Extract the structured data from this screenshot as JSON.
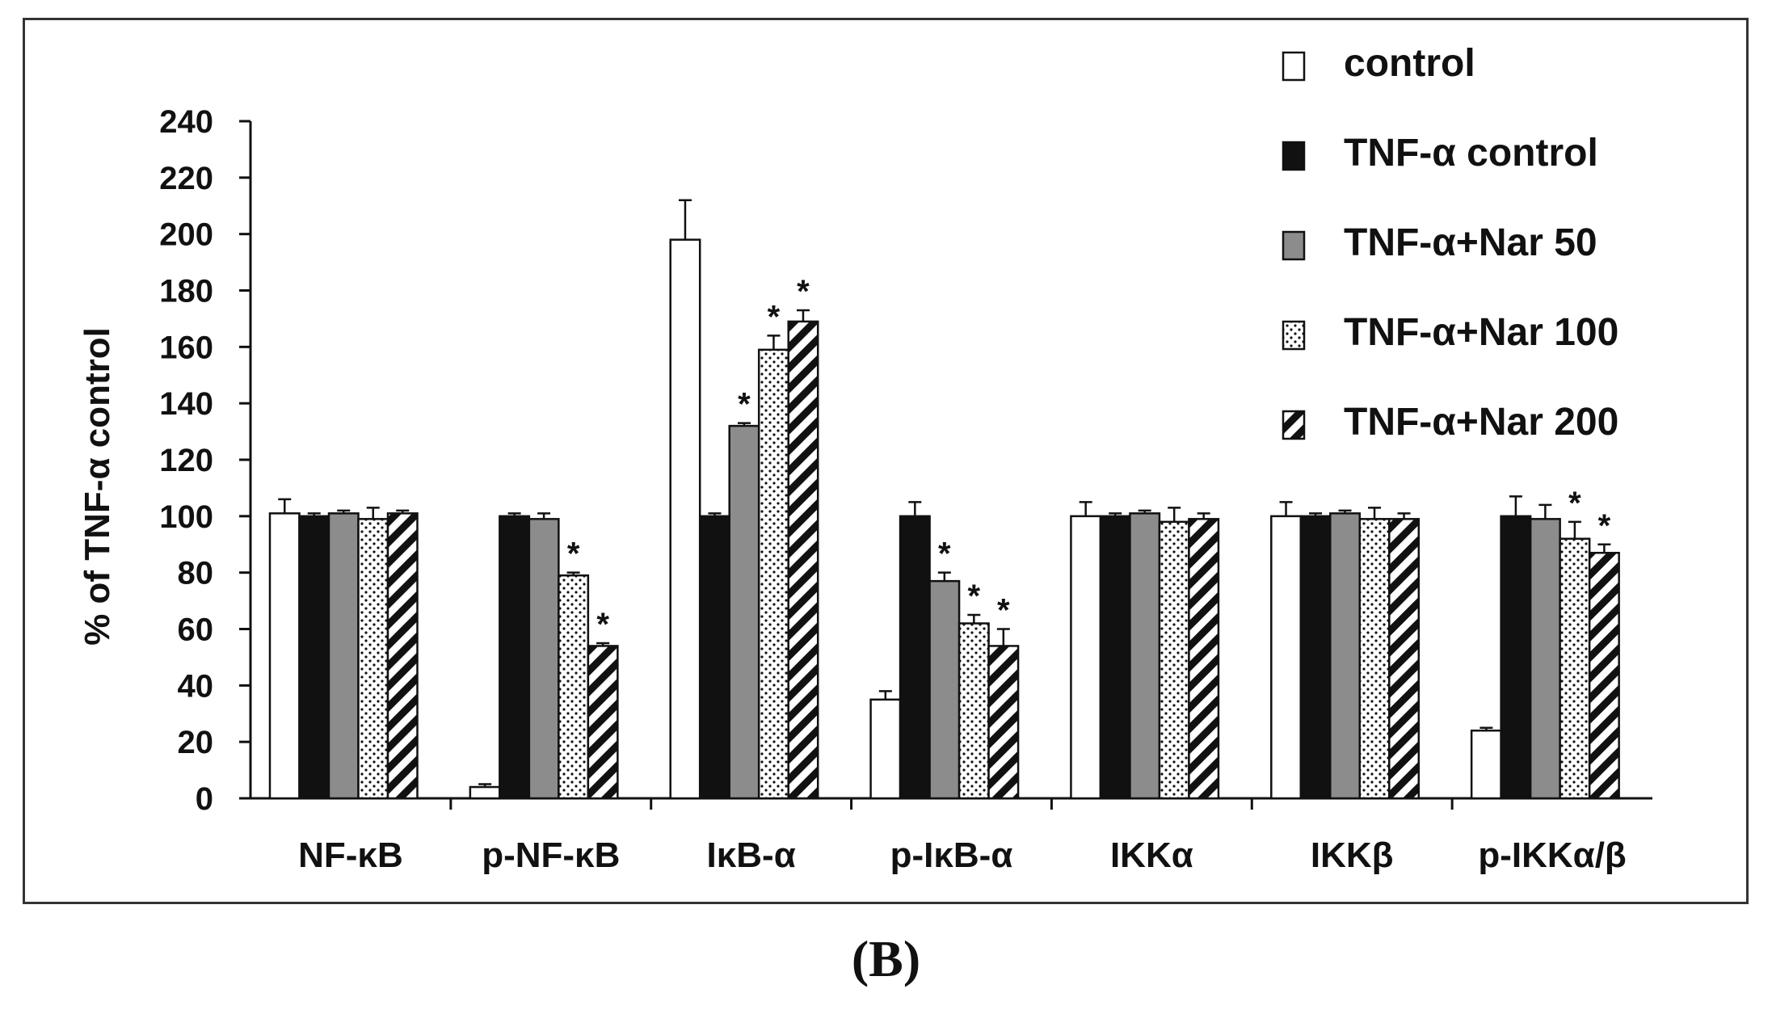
{
  "panel_label": "(B)",
  "chart_data": {
    "type": "bar",
    "title": "",
    "xlabel": "",
    "ylabel": "% of  TNF-α control",
    "ylim": [
      0,
      240
    ],
    "yticks": [
      0,
      20,
      40,
      60,
      80,
      100,
      120,
      140,
      160,
      180,
      200,
      220,
      240
    ],
    "grid": false,
    "legend_position": "top-right",
    "categories": [
      "NF-κB",
      "p-NF-κB",
      "IκB-α",
      "p-IκB-α",
      "IKKα",
      "IKKβ",
      "p-IKKα/β"
    ],
    "series": [
      {
        "name": "control",
        "fill": "white",
        "values": [
          101,
          4,
          198,
          35,
          100,
          100,
          24
        ],
        "errors": [
          5,
          1,
          14,
          3,
          5,
          5,
          1
        ],
        "significant": [
          false,
          false,
          false,
          false,
          false,
          false,
          false
        ]
      },
      {
        "name": "TNF-α control",
        "fill": "black",
        "values": [
          100,
          100,
          100,
          100,
          100,
          100,
          100
        ],
        "errors": [
          1,
          1,
          1,
          5,
          1,
          1,
          7
        ],
        "significant": [
          false,
          false,
          false,
          false,
          false,
          false,
          false
        ]
      },
      {
        "name": "TNF-α+Nar 50",
        "fill": "gray",
        "values": [
          101,
          99,
          132,
          77,
          101,
          101,
          99
        ],
        "errors": [
          1,
          2,
          1,
          3,
          1,
          1,
          5
        ],
        "significant": [
          false,
          false,
          true,
          true,
          false,
          false,
          false
        ]
      },
      {
        "name": "TNF-α+Nar 100",
        "fill": "dots",
        "values": [
          99,
          79,
          159,
          62,
          98,
          99,
          92
        ],
        "errors": [
          4,
          1,
          5,
          3,
          5,
          4,
          6
        ],
        "significant": [
          false,
          true,
          true,
          true,
          false,
          false,
          true
        ]
      },
      {
        "name": "TNF-α+Nar 200",
        "fill": "stripes",
        "values": [
          101,
          54,
          169,
          54,
          99,
          99,
          87
        ],
        "errors": [
          1,
          1,
          4,
          6,
          2,
          2,
          3
        ],
        "significant": [
          false,
          true,
          true,
          true,
          false,
          false,
          true
        ]
      }
    ],
    "significance_marker": "*"
  },
  "colors": {
    "black": "#111111",
    "gray": "#8c8c8c",
    "white": "#ffffff"
  }
}
